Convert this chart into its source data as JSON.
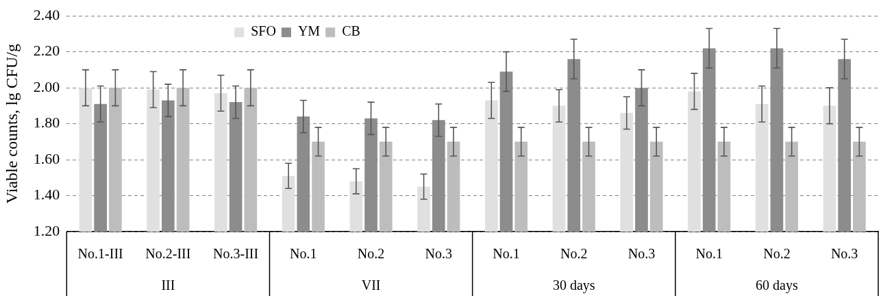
{
  "chart_data": {
    "type": "bar",
    "ylabel": "Viable counts, lg CFU/g",
    "categories": [
      "No.1-III",
      "No.2-III",
      "No.3-III",
      "No.1",
      "No.2",
      "No.3",
      "No.1",
      "No.2",
      "No.3",
      "No.1",
      "No.2",
      "No.3"
    ],
    "series": [
      {
        "name": "SFO",
        "color": "#e0e0e0",
        "values": [
          2.0,
          1.99,
          1.97,
          1.51,
          1.48,
          1.45,
          1.93,
          1.9,
          1.86,
          1.98,
          1.91,
          1.9
        ],
        "errors": [
          0.1,
          0.1,
          0.1,
          0.07,
          0.07,
          0.07,
          0.1,
          0.09,
          0.09,
          0.1,
          0.1,
          0.1
        ]
      },
      {
        "name": "YM",
        "color": "#8c8c8c",
        "values": [
          1.91,
          1.93,
          1.92,
          1.84,
          1.83,
          1.82,
          2.09,
          2.16,
          2.0,
          2.22,
          2.22,
          2.16
        ],
        "errors": [
          0.1,
          0.09,
          0.09,
          0.09,
          0.09,
          0.09,
          0.11,
          0.11,
          0.1,
          0.11,
          0.11,
          0.11
        ]
      },
      {
        "name": "CB",
        "color": "#bdbdbd",
        "values": [
          2.0,
          2.0,
          2.0,
          1.7,
          1.7,
          1.7,
          1.7,
          1.7,
          1.7,
          1.7,
          1.7,
          1.7
        ],
        "errors": [
          0.1,
          0.1,
          0.1,
          0.08,
          0.08,
          0.08,
          0.08,
          0.08,
          0.08,
          0.08,
          0.08,
          0.08
        ]
      }
    ],
    "ylim": [
      1.2,
      2.4
    ],
    "yticks": [
      {
        "value": 1.2,
        "label": "1.20"
      },
      {
        "value": 1.4,
        "label": "1.40"
      },
      {
        "value": 1.6,
        "label": "1.60"
      },
      {
        "value": 1.8,
        "label": "1.80"
      },
      {
        "value": 2.0,
        "label": "2.00"
      },
      {
        "value": 2.2,
        "label": "2.20"
      },
      {
        "value": 2.4,
        "label": "2.40"
      }
    ],
    "grid": "y",
    "legend": "top left",
    "annotations": [
      "III",
      "VII",
      "30 days",
      "60 days"
    ]
  }
}
